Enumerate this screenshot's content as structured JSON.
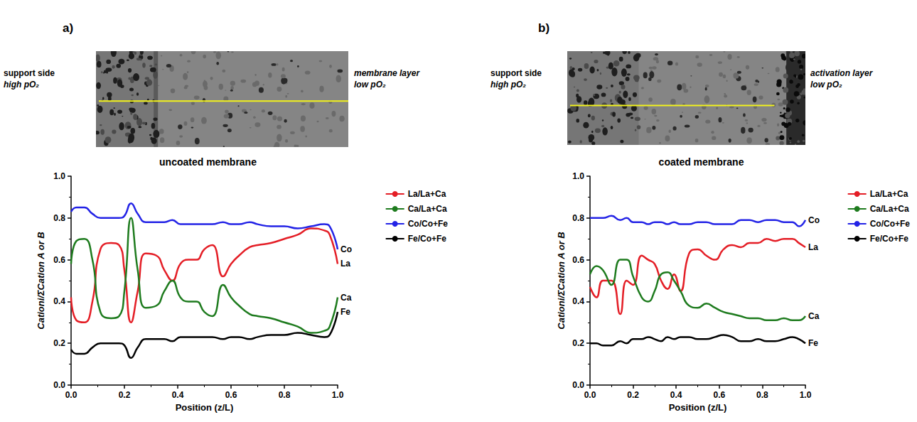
{
  "chart_data": [
    {
      "type": "line",
      "panel": "a)",
      "title": "uncoated membrane",
      "image_labels": {
        "left": [
          "support side",
          "high pO₂"
        ],
        "right": [
          "membrane layer",
          "low pO₂"
        ]
      },
      "x_label": "Position (z/L)",
      "y_label": "Cationi/ΣCation A or B",
      "xlim": [
        0,
        1
      ],
      "ylim": [
        0,
        1
      ],
      "xticks": [
        {
          "value": 0,
          "label": "0.0"
        },
        {
          "value": 0.2,
          "label": "0.2"
        },
        {
          "value": 0.4,
          "label": "0.4"
        },
        {
          "value": 0.6,
          "label": "0.6"
        },
        {
          "value": 0.8,
          "label": "0.8"
        },
        {
          "value": 1,
          "label": "1.0"
        }
      ],
      "yticks": [
        {
          "value": 0,
          "label": "0.0"
        },
        {
          "value": 0.2,
          "label": "0.2"
        },
        {
          "value": 0.4,
          "label": "0.4"
        },
        {
          "value": 0.6,
          "label": "0.6"
        },
        {
          "value": 0.8,
          "label": "0.8"
        },
        {
          "value": 1,
          "label": "1.0"
        }
      ],
      "grid": false,
      "legend": "right",
      "x": [
        0,
        0.02,
        0.05,
        0.08,
        0.11,
        0.15,
        0.18,
        0.2,
        0.225,
        0.25,
        0.28,
        0.32,
        0.35,
        0.38,
        0.41,
        0.44,
        0.47,
        0.5,
        0.53,
        0.57,
        0.6,
        0.63,
        0.67,
        0.7,
        0.75,
        0.8,
        0.85,
        0.9,
        0.95,
        0.97,
        1.0
      ],
      "series": [
        {
          "name": "La/La+Ca",
          "color": "#e41e26",
          "end_label": "La",
          "values": [
            0.42,
            0.31,
            0.3,
            0.4,
            0.65,
            0.68,
            0.67,
            0.55,
            0.3,
            0.45,
            0.63,
            0.62,
            0.55,
            0.5,
            0.58,
            0.6,
            0.6,
            0.65,
            0.67,
            0.52,
            0.58,
            0.62,
            0.66,
            0.67,
            0.68,
            0.7,
            0.72,
            0.75,
            0.74,
            0.72,
            0.58
          ]
        },
        {
          "name": "Ca/La+Ca",
          "color": "#1e7b1e",
          "end_label": "Ca",
          "values": [
            0.58,
            0.69,
            0.7,
            0.6,
            0.35,
            0.32,
            0.33,
            0.45,
            0.8,
            0.55,
            0.37,
            0.38,
            0.45,
            0.5,
            0.42,
            0.4,
            0.4,
            0.35,
            0.33,
            0.48,
            0.42,
            0.38,
            0.34,
            0.33,
            0.32,
            0.3,
            0.28,
            0.25,
            0.26,
            0.28,
            0.42
          ]
        },
        {
          "name": "Co/Co+Fe",
          "color": "#2323e6",
          "end_label": "Co",
          "values": [
            0.83,
            0.85,
            0.85,
            0.82,
            0.8,
            0.8,
            0.8,
            0.81,
            0.87,
            0.82,
            0.78,
            0.78,
            0.78,
            0.79,
            0.77,
            0.77,
            0.77,
            0.77,
            0.77,
            0.78,
            0.77,
            0.77,
            0.78,
            0.77,
            0.76,
            0.76,
            0.75,
            0.76,
            0.77,
            0.76,
            0.65
          ]
        },
        {
          "name": "Fe/Co+Fe",
          "color": "#000000",
          "end_label": "Fe",
          "values": [
            0.17,
            0.15,
            0.15,
            0.18,
            0.2,
            0.2,
            0.2,
            0.19,
            0.13,
            0.18,
            0.22,
            0.22,
            0.22,
            0.21,
            0.23,
            0.23,
            0.23,
            0.23,
            0.23,
            0.22,
            0.23,
            0.23,
            0.22,
            0.23,
            0.24,
            0.24,
            0.25,
            0.24,
            0.23,
            0.24,
            0.35
          ]
        }
      ]
    },
    {
      "type": "line",
      "panel": "b)",
      "title": "coated membrane",
      "image_labels": {
        "left": [
          "support side",
          "high pO₂"
        ],
        "right": [
          "activation layer",
          "low pO₂"
        ]
      },
      "x_label": "Position (z/L)",
      "y_label": "Cationi/ΣCation A or B",
      "xlim": [
        0,
        1
      ],
      "ylim": [
        0,
        1
      ],
      "xticks": [
        {
          "value": 0,
          "label": "0.0"
        },
        {
          "value": 0.2,
          "label": "0.2"
        },
        {
          "value": 0.4,
          "label": "0.4"
        },
        {
          "value": 0.6,
          "label": "0.6"
        },
        {
          "value": 0.8,
          "label": "0.8"
        },
        {
          "value": 1,
          "label": "1.0"
        }
      ],
      "yticks": [
        {
          "value": 0,
          "label": "0.0"
        },
        {
          "value": 0.2,
          "label": "0.2"
        },
        {
          "value": 0.4,
          "label": "0.4"
        },
        {
          "value": 0.6,
          "label": "0.6"
        },
        {
          "value": 0.8,
          "label": "0.8"
        },
        {
          "value": 1,
          "label": "1.0"
        }
      ],
      "grid": false,
      "legend": "right",
      "x": [
        0,
        0.03,
        0.06,
        0.1,
        0.14,
        0.17,
        0.2,
        0.24,
        0.27,
        0.3,
        0.33,
        0.36,
        0.39,
        0.42,
        0.46,
        0.5,
        0.54,
        0.58,
        0.62,
        0.66,
        0.7,
        0.74,
        0.78,
        0.82,
        0.86,
        0.9,
        0.94,
        0.97,
        1.0
      ],
      "series": [
        {
          "name": "La/La+Ca",
          "color": "#e41e26",
          "end_label": "La",
          "values": [
            0.47,
            0.42,
            0.5,
            0.5,
            0.34,
            0.5,
            0.48,
            0.62,
            0.6,
            0.58,
            0.5,
            0.46,
            0.53,
            0.45,
            0.63,
            0.65,
            0.62,
            0.6,
            0.65,
            0.67,
            0.66,
            0.68,
            0.68,
            0.7,
            0.69,
            0.7,
            0.7,
            0.68,
            0.66
          ]
        },
        {
          "name": "Ca/La+Ca",
          "color": "#1e7b1e",
          "end_label": "Ca",
          "values": [
            0.53,
            0.57,
            0.55,
            0.48,
            0.6,
            0.6,
            0.52,
            0.42,
            0.4,
            0.45,
            0.53,
            0.54,
            0.5,
            0.45,
            0.38,
            0.37,
            0.39,
            0.37,
            0.35,
            0.34,
            0.33,
            0.32,
            0.32,
            0.31,
            0.31,
            0.32,
            0.31,
            0.31,
            0.33
          ]
        },
        {
          "name": "Co/Co+Fe",
          "color": "#2323e6",
          "end_label": "Co",
          "values": [
            0.8,
            0.8,
            0.8,
            0.81,
            0.79,
            0.8,
            0.78,
            0.78,
            0.77,
            0.78,
            0.78,
            0.77,
            0.78,
            0.77,
            0.77,
            0.78,
            0.78,
            0.77,
            0.77,
            0.77,
            0.79,
            0.79,
            0.78,
            0.79,
            0.79,
            0.78,
            0.78,
            0.76,
            0.79
          ]
        },
        {
          "name": "Fe/Co+Fe",
          "color": "#000000",
          "end_label": "Fe",
          "values": [
            0.2,
            0.2,
            0.19,
            0.19,
            0.21,
            0.2,
            0.22,
            0.22,
            0.23,
            0.22,
            0.21,
            0.23,
            0.22,
            0.23,
            0.23,
            0.22,
            0.22,
            0.23,
            0.24,
            0.23,
            0.21,
            0.21,
            0.22,
            0.21,
            0.21,
            0.22,
            0.23,
            0.22,
            0.2
          ]
        }
      ]
    }
  ]
}
